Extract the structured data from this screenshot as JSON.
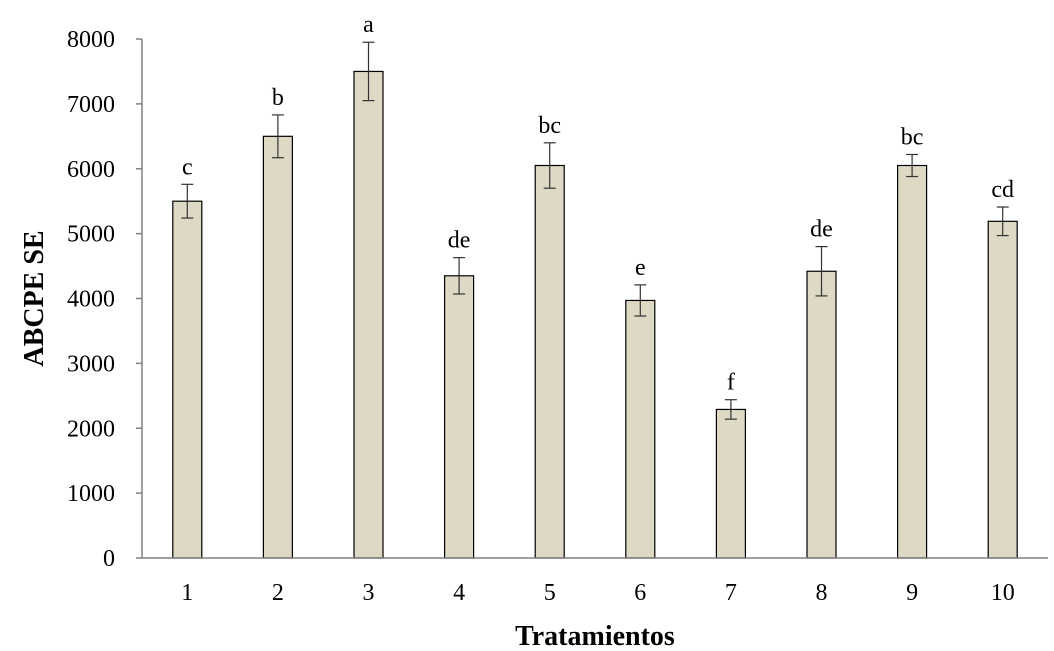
{
  "chart_data": {
    "type": "bar",
    "title": "",
    "xlabel": "Tratamientos",
    "ylabel": "ABCPE SE",
    "categories": [
      "1",
      "2",
      "3",
      "4",
      "5",
      "6",
      "7",
      "8",
      "9",
      "10"
    ],
    "values": [
      5500,
      6500,
      7500,
      4350,
      6050,
      3970,
      2290,
      4420,
      6050,
      5190
    ],
    "errors": [
      260,
      330,
      450,
      280,
      350,
      240,
      150,
      380,
      170,
      220
    ],
    "significance_letters": [
      "c",
      "b",
      "a",
      "de",
      "bc",
      "e",
      "f",
      "de",
      "bc",
      "cd"
    ],
    "ylim": [
      0,
      8000
    ],
    "yticks": [
      "0",
      "1000",
      "2000",
      "3000",
      "4000",
      "5000",
      "6000",
      "7000",
      "8000"
    ],
    "grid": false,
    "legend": "none",
    "bar_color": "#ddd9c4",
    "bar_edge_color": "#000000"
  }
}
